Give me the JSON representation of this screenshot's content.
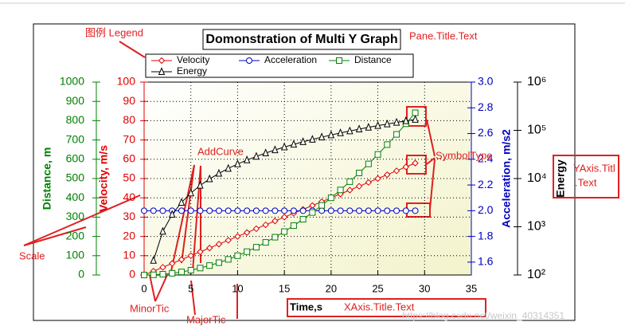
{
  "chart_data": {
    "type": "line",
    "title": "Domonstration of Multi Y Graph",
    "x_label": "Time,s",
    "x": [
      0,
      1,
      2,
      3,
      4,
      5,
      6,
      7,
      8,
      9,
      10,
      11,
      12,
      13,
      14,
      15,
      16,
      17,
      18,
      19,
      20,
      21,
      22,
      23,
      24,
      25,
      26,
      27,
      28,
      29
    ],
    "xlim": [
      0,
      35
    ],
    "xticks": [
      0,
      5,
      10,
      15,
      20,
      25,
      30,
      35
    ],
    "grid": true,
    "axes": [
      {
        "title": "Distance, m",
        "color": "#008000",
        "side": "left",
        "log": false,
        "lim": [
          0,
          1000
        ],
        "ticks": [
          0,
          100,
          200,
          300,
          400,
          500,
          600,
          700,
          800,
          900,
          1000
        ]
      },
      {
        "title": "Velocity, m/s",
        "color": "#e00000",
        "side": "left",
        "log": false,
        "lim": [
          0,
          100
        ],
        "ticks": [
          0,
          10,
          20,
          30,
          40,
          50,
          60,
          70,
          80,
          90,
          100
        ]
      },
      {
        "title": "Acceleration, m/s2",
        "color": "#0000c0",
        "side": "right",
        "log": false,
        "lim": [
          1.5,
          3.0
        ],
        "ticks": [
          {
            "value": 1.6,
            "label": "1.6"
          },
          {
            "value": 1.8,
            "label": "1.8"
          },
          {
            "value": 2.0,
            "label": "2.0"
          },
          {
            "value": 2.2,
            "label": "2.2"
          },
          {
            "value": 2.4,
            "label": "2.4"
          },
          {
            "value": 2.6,
            "label": "2.6"
          },
          {
            "value": 2.8,
            "label": "2.8"
          },
          {
            "value": 3.0,
            "label": "3.0"
          }
        ]
      },
      {
        "title": "Energy",
        "color": "#000000",
        "side": "right",
        "log": true,
        "lim": [
          100,
          1000000
        ],
        "ticks": [
          {
            "value": 100,
            "label": "10²"
          },
          {
            "value": 1000,
            "label": "10³"
          },
          {
            "value": 10000,
            "label": "10⁴"
          },
          {
            "value": 100000,
            "label": "10⁵"
          },
          {
            "value": 1000000,
            "label": "10⁶"
          }
        ]
      }
    ],
    "series": [
      {
        "name": "Velocity",
        "color": "#e00000",
        "marker": "diamond",
        "axis": 1,
        "values": [
          0,
          2,
          4,
          6,
          8,
          10,
          12,
          14,
          16,
          18,
          20,
          22,
          24,
          26,
          28,
          30,
          32,
          34,
          36,
          38,
          40,
          42,
          44,
          46,
          48,
          50,
          52,
          54,
          56,
          58
        ]
      },
      {
        "name": "Acceleration",
        "color": "#0000c0",
        "marker": "circle",
        "axis": 2,
        "values": [
          2,
          2,
          2,
          2,
          2,
          2,
          2,
          2,
          2,
          2,
          2,
          2,
          2,
          2,
          2,
          2,
          2,
          2,
          2,
          2,
          2,
          2,
          2,
          2,
          2,
          2,
          2,
          2,
          2,
          2
        ]
      },
      {
        "name": "Distance",
        "color": "#008000",
        "marker": "square",
        "axis": 0,
        "values": [
          0,
          1,
          4,
          9,
          16,
          25,
          36,
          49,
          64,
          81,
          100,
          121,
          144,
          169,
          196,
          225,
          256,
          289,
          324,
          361,
          400,
          441,
          484,
          529,
          576,
          625,
          676,
          729,
          784,
          841
        ]
      },
      {
        "name": "Energy",
        "color": "#000000",
        "marker": "triangle",
        "axis": 3,
        "values": [
          null,
          200,
          800,
          1800,
          3200,
          5000,
          7200,
          9800,
          12800,
          16200,
          20000,
          24200,
          28800,
          33800,
          39200,
          45000,
          51200,
          57800,
          64800,
          72200,
          80000,
          88200,
          96800,
          105800,
          115200,
          125000,
          135200,
          145800,
          156800,
          168200
        ]
      }
    ],
    "annotations": [
      "图例 Legend",
      "Pane.Title.Text",
      "AddCurve",
      "SymbolType",
      "YAxis.Titl",
      ".Text",
      "Scale",
      "MinorTic",
      "MajorTic",
      "XAxis.Title.Text",
      "https://blog.csdn.net/weixin_40314351"
    ]
  }
}
